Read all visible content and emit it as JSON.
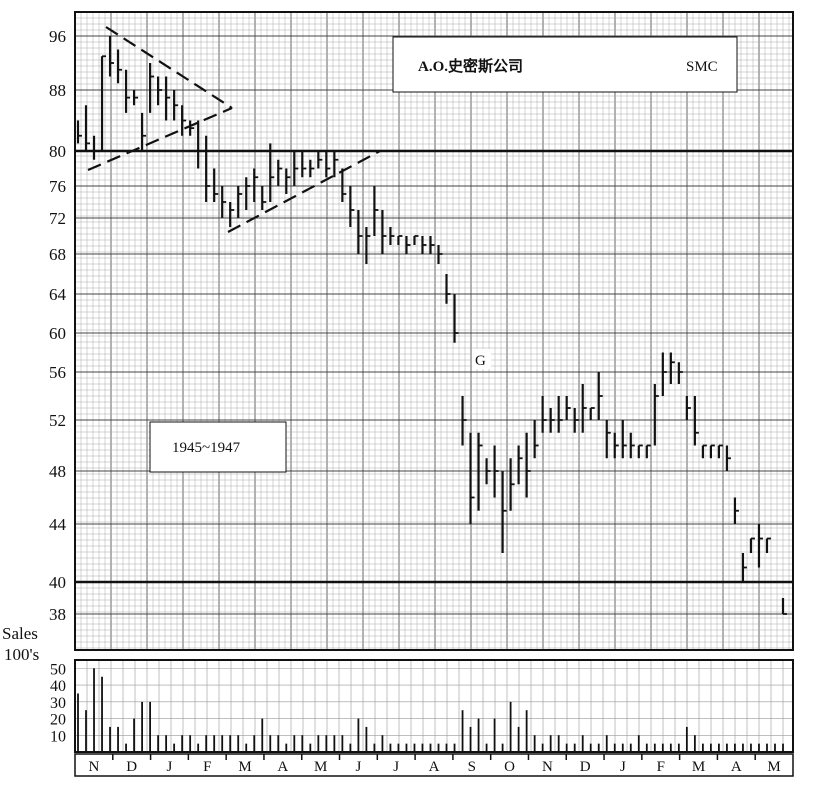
{
  "chart_data": {
    "type": "bar",
    "subtype": "ohlc-with-volume",
    "title_box": {
      "name": "A.O.史密斯公司",
      "ticker": "SMC"
    },
    "period_label": "1945~1947",
    "annotation": "G",
    "y_axis": {
      "ticks": [
        96,
        88,
        80,
        76,
        72,
        68,
        64,
        60,
        56,
        52,
        48,
        44,
        40,
        38
      ],
      "range": [
        37,
        98
      ],
      "scale": "nonlinear-ratio"
    },
    "reference_lines": [
      80,
      40
    ],
    "volume_axis": {
      "label_lines": [
        "Sales",
        "100's"
      ],
      "ticks": [
        50,
        40,
        30,
        20,
        10
      ],
      "range": [
        0,
        55
      ]
    },
    "months": [
      "N",
      "D",
      "J",
      "F",
      "M",
      "A",
      "M",
      "J",
      "J",
      "A",
      "S",
      "O",
      "N",
      "D",
      "J",
      "F",
      "M",
      "A",
      "M"
    ],
    "grid": true,
    "price_bars": [
      [
        84,
        81,
        82
      ],
      [
        86,
        80,
        81
      ],
      [
        82,
        79,
        80
      ],
      [
        93,
        80,
        93
      ],
      [
        96,
        90,
        92
      ],
      [
        94,
        89,
        91
      ],
      [
        91,
        85,
        87
      ],
      [
        88,
        86,
        87
      ],
      [
        85,
        80,
        82
      ],
      [
        92,
        85,
        90
      ],
      [
        90,
        86,
        88
      ],
      [
        90,
        84,
        87
      ],
      [
        88,
        84,
        86
      ],
      [
        86,
        82,
        84
      ],
      [
        84,
        82,
        83
      ],
      [
        84,
        78,
        80
      ],
      [
        82,
        74,
        76
      ],
      [
        78,
        74,
        75
      ],
      [
        76,
        72,
        74
      ],
      [
        74,
        71,
        73
      ],
      [
        76,
        72,
        75
      ],
      [
        77,
        73,
        76
      ],
      [
        78,
        74,
        77
      ],
      [
        76,
        73,
        74
      ],
      [
        81,
        74,
        77
      ],
      [
        79,
        76,
        78
      ],
      [
        78,
        75,
        77
      ],
      [
        80,
        76,
        78
      ],
      [
        80,
        77,
        78
      ],
      [
        79,
        77,
        78
      ],
      [
        80,
        78,
        79
      ],
      [
        80,
        77,
        78
      ],
      [
        80,
        77,
        79
      ],
      [
        78,
        74,
        75
      ],
      [
        76,
        71,
        73
      ],
      [
        73,
        68,
        70
      ],
      [
        71,
        67,
        70
      ],
      [
        76,
        70,
        73
      ],
      [
        73,
        68,
        70
      ],
      [
        71,
        69,
        70
      ],
      [
        70,
        69,
        70
      ],
      [
        70,
        68,
        69
      ],
      [
        70,
        69,
        70
      ],
      [
        70,
        68,
        69
      ],
      [
        70,
        68,
        69
      ],
      [
        69,
        67,
        68
      ],
      [
        66,
        63,
        64
      ],
      [
        64,
        59,
        60
      ],
      [
        54,
        50,
        52
      ],
      [
        51,
        44,
        46
      ],
      [
        51,
        45,
        50
      ],
      [
        49,
        47,
        48
      ],
      [
        50,
        46,
        48
      ],
      [
        48,
        42,
        45
      ],
      [
        49,
        45,
        47
      ],
      [
        50,
        47,
        49
      ],
      [
        51,
        46,
        48
      ],
      [
        52,
        49,
        50
      ],
      [
        54,
        51,
        52
      ],
      [
        53,
        51,
        52
      ],
      [
        54,
        51,
        52
      ],
      [
        54,
        52,
        53
      ],
      [
        53,
        51,
        52
      ],
      [
        55,
        51,
        53
      ],
      [
        53,
        52,
        53
      ],
      [
        56,
        52,
        54
      ],
      [
        52,
        49,
        51
      ],
      [
        51,
        49,
        50
      ],
      [
        52,
        49,
        50
      ],
      [
        51,
        49,
        50
      ],
      [
        50,
        49,
        50
      ],
      [
        50,
        49,
        50
      ],
      [
        55,
        50,
        54
      ],
      [
        58,
        54,
        56
      ],
      [
        58,
        55,
        57
      ],
      [
        57,
        55,
        56
      ],
      [
        54,
        52,
        53
      ],
      [
        54,
        50,
        51
      ],
      [
        50,
        49,
        50
      ],
      [
        50,
        49,
        50
      ],
      [
        50,
        49,
        50
      ],
      [
        50,
        48,
        49
      ],
      [
        46,
        44,
        45
      ],
      [
        42,
        40,
        41
      ],
      [
        43,
        42,
        43
      ],
      [
        44,
        41,
        43
      ],
      [
        43,
        42,
        43
      ],
      [
        40,
        40,
        40
      ],
      [
        39,
        38,
        38
      ]
    ],
    "volume_values": [
      35,
      25,
      50,
      45,
      15,
      15,
      5,
      20,
      30,
      30,
      10,
      10,
      5,
      10,
      10,
      5,
      10,
      10,
      10,
      10,
      10,
      5,
      10,
      20,
      10,
      10,
      5,
      10,
      10,
      5,
      10,
      10,
      10,
      10,
      5,
      20,
      15,
      5,
      10,
      5,
      5,
      5,
      5,
      5,
      5,
      5,
      5,
      5,
      25,
      15,
      20,
      5,
      20,
      5,
      30,
      15,
      25,
      10,
      5,
      10,
      10,
      5,
      5,
      10,
      5,
      5,
      10,
      5,
      5,
      5,
      10,
      5,
      5,
      5,
      5,
      5,
      15,
      10,
      5,
      5,
      5,
      5,
      5,
      5,
      5,
      5,
      5,
      5,
      5
    ]
  }
}
